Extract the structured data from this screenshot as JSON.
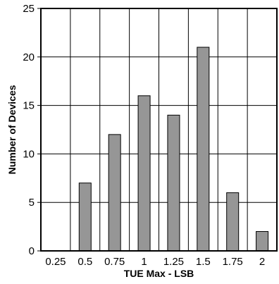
{
  "chart_data": {
    "type": "bar",
    "title": "",
    "xlabel": "TUE Max - LSB",
    "ylabel": "Number of Devices",
    "categories": [
      "0.25",
      "0.5",
      "0.75",
      "1",
      "1.25",
      "1.5",
      "1.75",
      "2"
    ],
    "values": [
      0,
      7,
      12,
      16,
      14,
      21,
      6,
      2
    ],
    "ylim": [
      0,
      25
    ],
    "yticks": [
      "0",
      "5",
      "10",
      "15",
      "20",
      "25"
    ],
    "grid": true,
    "bar_color": "#969696",
    "bar_edge_color": "#000000"
  }
}
